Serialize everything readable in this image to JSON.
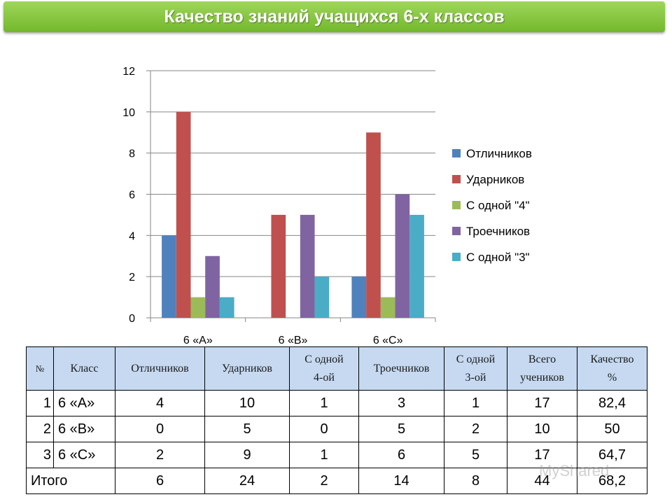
{
  "title": "Качество знаний учащихся 6-х классов",
  "chart_data": {
    "type": "bar",
    "categories": [
      "6 «А»",
      "6 «В»",
      "6 «С»"
    ],
    "series": [
      {
        "name": "Отличников",
        "values": [
          4,
          0,
          2
        ],
        "color": "#4f81bd"
      },
      {
        "name": "Ударников",
        "values": [
          10,
          5,
          9
        ],
        "color": "#c0504d"
      },
      {
        "name": "С одной \"4\"",
        "values": [
          1,
          0,
          1
        ],
        "color": "#9bbb59"
      },
      {
        "name": "Троечников",
        "values": [
          3,
          5,
          6
        ],
        "color": "#8064a2"
      },
      {
        "name": "С одной \"3\"",
        "values": [
          1,
          2,
          5
        ],
        "color": "#4bacc6"
      }
    ],
    "ylim": [
      0,
      12
    ],
    "yticks": [
      0,
      2,
      4,
      6,
      8,
      10,
      12
    ],
    "grid": true,
    "legend": "right"
  },
  "table": {
    "headers": {
      "num": "№",
      "class": "Класс",
      "excellent": "Отличников",
      "good": "Ударников",
      "one4_line1": "С одной",
      "one4_line2": "4-ой",
      "c_grade": "Троечников",
      "one3_line1": "С одной",
      "one3_line2": "3-ой",
      "total_line1": "Всего",
      "total_line2": "учеников",
      "quality_line1": "Качество",
      "quality_line2": "%"
    },
    "rows": [
      {
        "n": "1",
        "cls": "6 «А»",
        "c1": "4",
        "c2": "10",
        "c3": "1",
        "c4": "3",
        "c5": "1",
        "c6": "17",
        "c7": "82,4"
      },
      {
        "n": "2",
        "cls": "6 «В»",
        "c1": "0",
        "c2": "5",
        "c3": "0",
        "c4": "5",
        "c5": "2",
        "c6": "10",
        "c7": "50"
      },
      {
        "n": "3",
        "cls": "6 «С»",
        "c1": "2",
        "c2": "9",
        "c3": "1",
        "c4": "6",
        "c5": "5",
        "c6": "17",
        "c7": "64,7"
      }
    ],
    "total": {
      "label": "Итого",
      "c1": "6",
      "c2": "24",
      "c3": "2",
      "c4": "14",
      "c5": "8",
      "c6": "44",
      "c7": "68,2"
    }
  },
  "watermark": "MyShared"
}
